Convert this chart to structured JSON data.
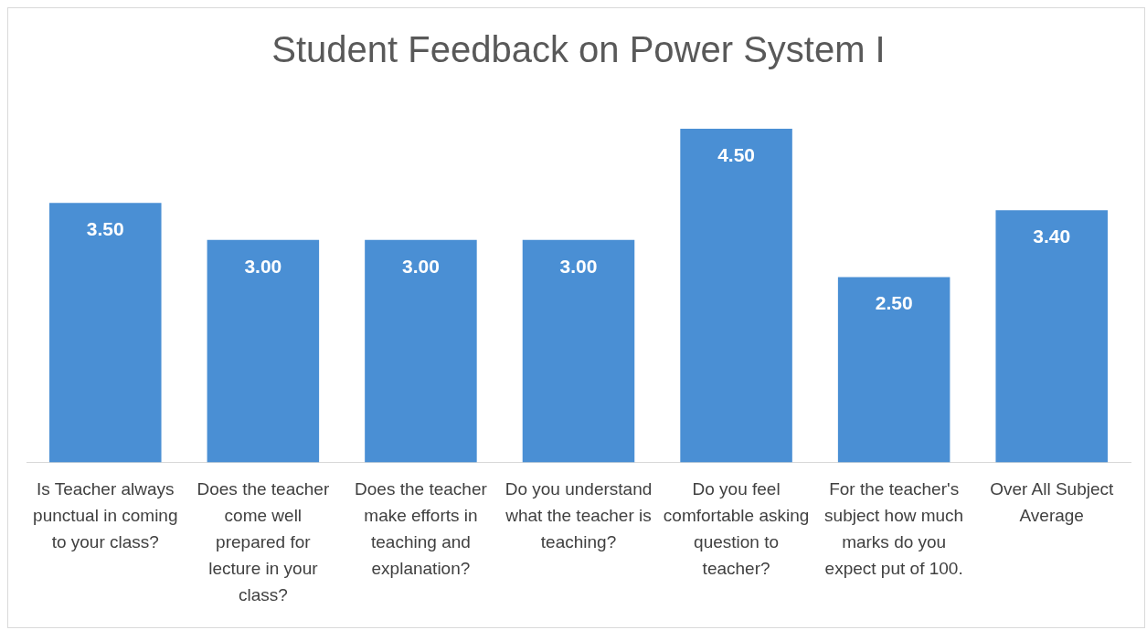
{
  "chart_data": {
    "type": "bar",
    "title": "Student Feedback on Power System I",
    "categories": [
      "Is Teacher always punctual in coming to your class?",
      "Does the teacher come well prepared for lecture in your class?",
      "Does the teacher make efforts in teaching and explanation?",
      "Do you understand what the teacher is teaching?",
      "Do you feel comfortable asking question to teacher?",
      "For the teacher's subject how much marks do you expect put of 100.",
      "Over All Subject Average"
    ],
    "values": [
      3.5,
      3.0,
      3.0,
      3.0,
      4.5,
      2.5,
      3.4
    ],
    "value_labels": [
      "3.50",
      "3.00",
      "3.00",
      "3.00",
      "4.50",
      "2.50",
      "3.40"
    ],
    "color": "#4a8fd4",
    "grid": false,
    "legend": false
  }
}
